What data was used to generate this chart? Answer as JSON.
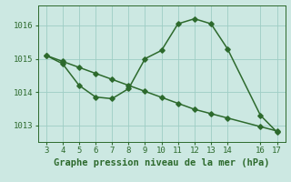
{
  "series1_x": [
    3,
    4,
    5,
    6,
    7,
    8,
    9,
    10,
    11,
    12,
    13,
    14,
    16,
    17
  ],
  "series1_y": [
    1015.1,
    1014.85,
    1014.2,
    1013.85,
    1013.8,
    1014.1,
    1015.0,
    1015.25,
    1016.05,
    1016.2,
    1016.05,
    1015.3,
    1013.3,
    1012.8
  ],
  "series2_x": [
    3,
    4,
    5,
    6,
    7,
    8,
    9,
    10,
    11,
    12,
    13,
    14,
    16,
    17
  ],
  "series2_y": [
    1015.1,
    1014.92,
    1014.74,
    1014.56,
    1014.38,
    1014.2,
    1014.02,
    1013.84,
    1013.66,
    1013.48,
    1013.35,
    1013.22,
    1012.96,
    1012.83
  ],
  "line_color": "#2d6a2d",
  "bg_color": "#cce8e2",
  "grid_color": "#9ecdc5",
  "xlabel": "Graphe pression niveau de la mer (hPa)",
  "xlim": [
    2.5,
    17.5
  ],
  "ylim": [
    1012.5,
    1016.6
  ],
  "yticks": [
    1013,
    1014,
    1015,
    1016
  ],
  "xticks": [
    3,
    4,
    5,
    6,
    7,
    8,
    9,
    10,
    11,
    12,
    13,
    14,
    16,
    17
  ],
  "marker": "D",
  "markersize": 2.8,
  "linewidth": 1.1,
  "xlabel_fontsize": 7.5,
  "tick_fontsize": 6.5,
  "xlabel_color": "#2d6a2d",
  "tick_color": "#2d6a2d"
}
